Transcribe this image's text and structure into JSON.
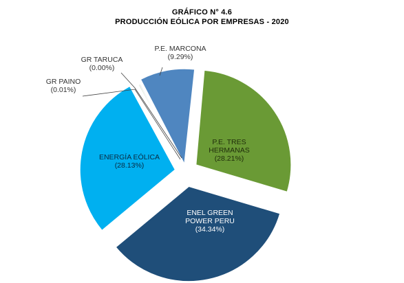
{
  "chart_data": {
    "type": "pie",
    "title": "GRÁFICO N° 4.6",
    "subtitle": "PRODUCCIÓN EÓLICA POR EMPRESAS  - 2020",
    "legend": "none",
    "slices": [
      {
        "label_lines": [
          "P.E. TRES",
          "HERMANAS"
        ],
        "pct_text": "(28.21%)",
        "value": 28.21,
        "color": "#6a9a35",
        "label_color": "#1f2d0a"
      },
      {
        "label_lines": [
          "ENEL GREEN",
          "POWER PERU"
        ],
        "pct_text": "(34.34%)",
        "value": 34.34,
        "color": "#1f4e79",
        "label_color": "#ffffff"
      },
      {
        "label_lines": [
          "ENERGÍA  EÓLICA"
        ],
        "pct_text": "(28.13%)",
        "value": 28.13,
        "color": "#00b0f0",
        "label_color": "#0a2a40"
      },
      {
        "label_lines": [
          "GR PAINO"
        ],
        "pct_text": "(0.01%)",
        "value": 0.01,
        "color": "#a9c5a0",
        "label_color": "#333333"
      },
      {
        "label_lines": [
          "GR TARUCA"
        ],
        "pct_text": "(0.00%)",
        "value": 0.0,
        "color": "#d9d9d9",
        "label_color": "#333333"
      },
      {
        "label_lines": [
          "P.E. MARCONA"
        ],
        "pct_text": "(9.29%)",
        "value": 9.29,
        "color": "#4f86c0",
        "label_color": "#333333"
      }
    ]
  }
}
